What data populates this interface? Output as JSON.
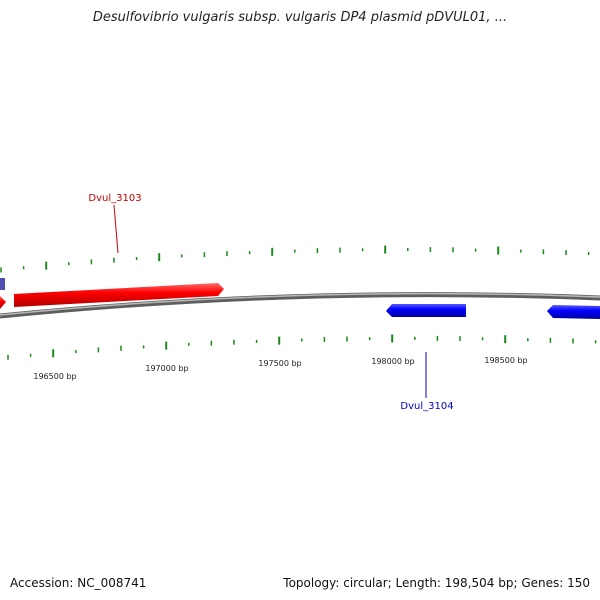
{
  "title": "Desulfovibrio vulgaris subsp. vulgaris DP4 plasmid pDVUL01, ...",
  "footer": {
    "accession": "Accession: NC_008741",
    "summary": "Topology: circular; Length: 198,504 bp; Genes: 150"
  },
  "colors": {
    "forward_gene": "#ff0000",
    "reverse_gene": "#0000ff",
    "backbone": "#8a8a8a",
    "ticks": "#1a8a1a"
  },
  "tick_labels": [
    "196500 bp",
    "197000 bp",
    "197500 bp",
    "198000 bp",
    "198500 bp"
  ],
  "genes": [
    {
      "id": "Dvul_3103",
      "strand": "+",
      "color": "#ff0000"
    },
    {
      "id": "Dvul_3104",
      "strand": "-",
      "color": "#0000ff"
    }
  ]
}
